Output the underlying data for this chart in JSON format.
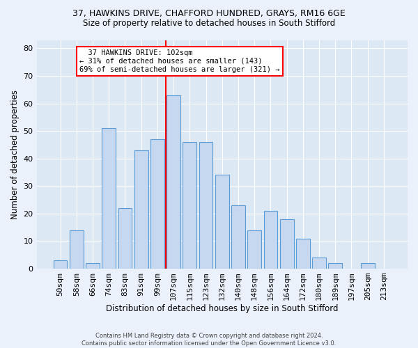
{
  "title1": "37, HAWKINS DRIVE, CHAFFORD HUNDRED, GRAYS, RM16 6GE",
  "title2": "Size of property relative to detached houses in South Stifford",
  "xlabel": "Distribution of detached houses by size in South Stifford",
  "ylabel": "Number of detached properties",
  "categories": [
    "50sqm",
    "58sqm",
    "66sqm",
    "74sqm",
    "83sqm",
    "91sqm",
    "99sqm",
    "107sqm",
    "115sqm",
    "123sqm",
    "132sqm",
    "140sqm",
    "148sqm",
    "156sqm",
    "164sqm",
    "172sqm",
    "180sqm",
    "189sqm",
    "197sqm",
    "205sqm",
    "213sqm"
  ],
  "values": [
    3,
    14,
    2,
    51,
    22,
    43,
    47,
    63,
    46,
    46,
    34,
    23,
    14,
    21,
    18,
    11,
    4,
    2,
    0,
    2,
    0
  ],
  "bar_color": "#c5d8f0",
  "bar_edge_color": "#5b9bd5",
  "vline_x": 6.5,
  "vline_color": "red",
  "annotation_text": "  37 HAWKINS DRIVE: 102sqm\n← 31% of detached houses are smaller (143)\n69% of semi-detached houses are larger (321) →",
  "annotation_box_color": "white",
  "annotation_box_edge": "red",
  "ylim": [
    0,
    83
  ],
  "yticks": [
    0,
    10,
    20,
    30,
    40,
    50,
    60,
    70,
    80
  ],
  "footer": "Contains HM Land Registry data © Crown copyright and database right 2024.\nContains public sector information licensed under the Open Government Licence v3.0.",
  "bg_color": "#eaf1fa",
  "plot_bg_color": "#dce9f5",
  "title1_fontsize": 9,
  "title2_fontsize": 8.5,
  "xlabel_fontsize": 8.5,
  "ylabel_fontsize": 8.5,
  "tick_fontsize": 8,
  "annot_fontsize": 7.5,
  "footer_fontsize": 6
}
